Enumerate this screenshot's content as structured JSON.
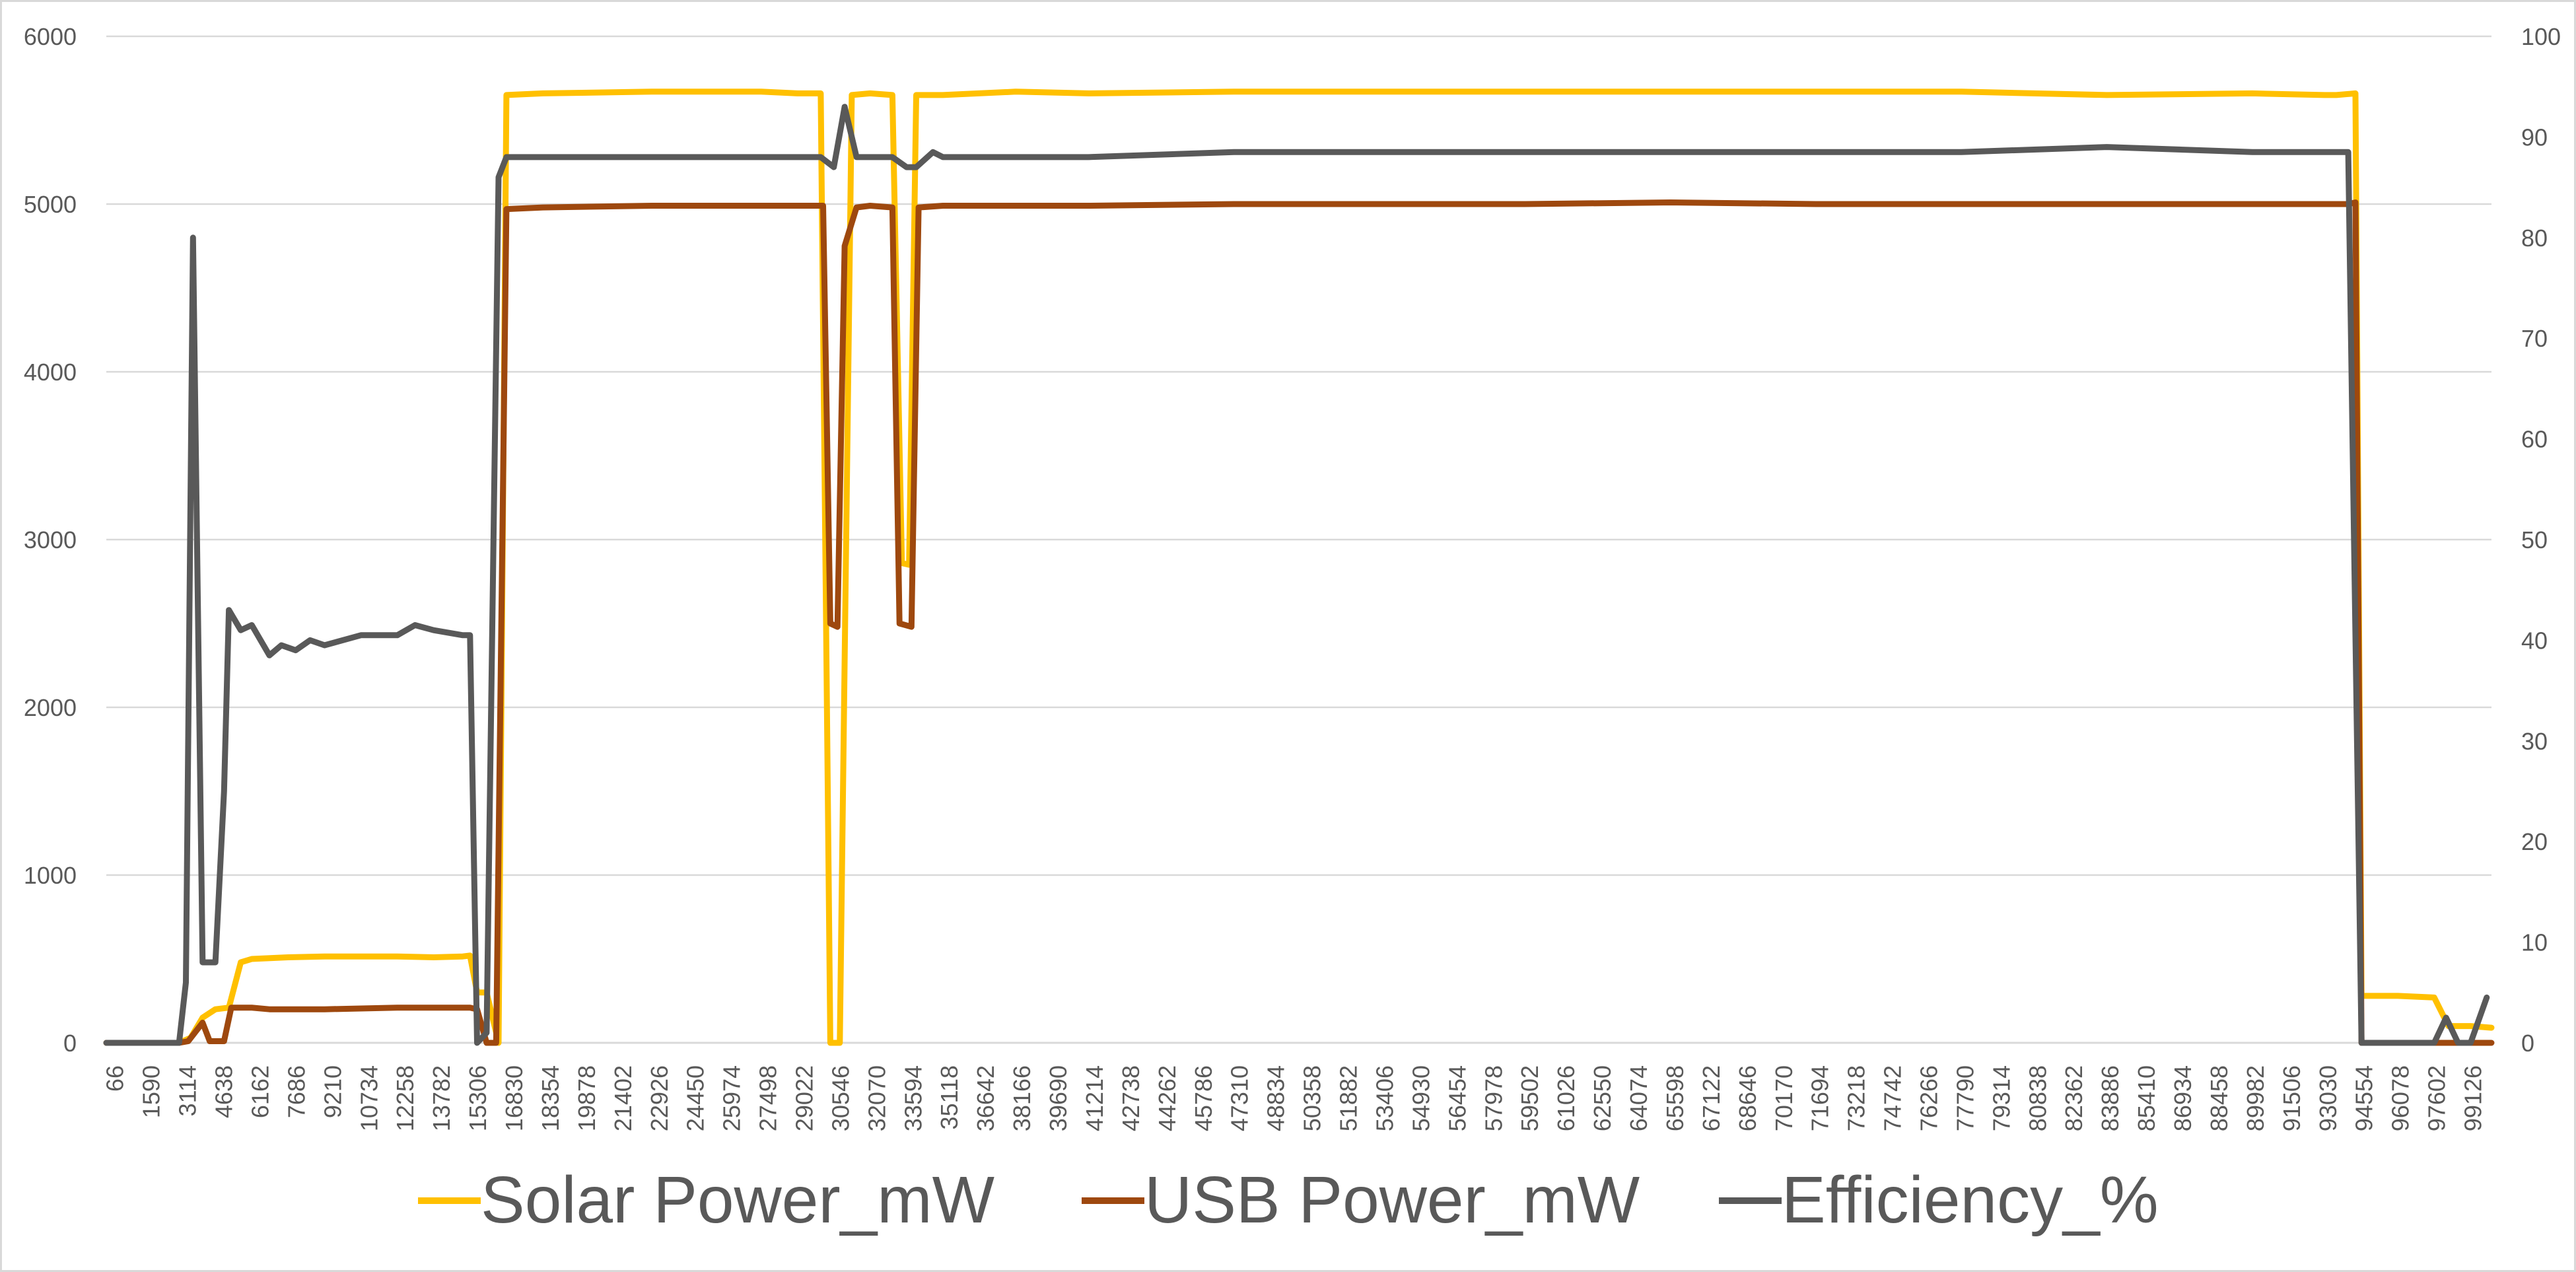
{
  "chart_data": {
    "type": "line",
    "title": "",
    "xlabel": "",
    "ylabel": "",
    "x_tick_labels": [
      "66",
      "1590",
      "3114",
      "4638",
      "6162",
      "7686",
      "9210",
      "10734",
      "12258",
      "13782",
      "15306",
      "16830",
      "18354",
      "19878",
      "21402",
      "22926",
      "24450",
      "25974",
      "27498",
      "29022",
      "30546",
      "32070",
      "33594",
      "35118",
      "36642",
      "38166",
      "39690",
      "41214",
      "42738",
      "44262",
      "45786",
      "47310",
      "48834",
      "50358",
      "51882",
      "53406",
      "54930",
      "56454",
      "57978",
      "59502",
      "61026",
      "62550",
      "64074",
      "65598",
      "67122",
      "68646",
      "70170",
      "71694",
      "73218",
      "74742",
      "76266",
      "77790",
      "79314",
      "80838",
      "82362",
      "83886",
      "85410",
      "86934",
      "88458",
      "89982",
      "91506",
      "93030",
      "94554",
      "96078",
      "97602",
      "99126"
    ],
    "x_range": [
      66,
      100000
    ],
    "y_left": {
      "range": [
        0,
        6000
      ],
      "ticks": [
        "0",
        "1000",
        "2000",
        "3000",
        "4000",
        "5000",
        "6000"
      ]
    },
    "y_right": {
      "range": [
        0,
        100
      ],
      "ticks": [
        "0",
        "10",
        "20",
        "30",
        "40",
        "50",
        "60",
        "70",
        "80",
        "90",
        "100"
      ]
    },
    "grid": "horizontal",
    "legend_position": "bottom",
    "series": [
      {
        "name": "Solar Power_mW",
        "axis": "left",
        "color": "#FFC000",
        "points": [
          [
            66,
            0
          ],
          [
            3114,
            0
          ],
          [
            3600,
            30
          ],
          [
            4100,
            150
          ],
          [
            4638,
            200
          ],
          [
            5200,
            210
          ],
          [
            5700,
            480
          ],
          [
            6162,
            500
          ],
          [
            7686,
            510
          ],
          [
            9210,
            515
          ],
          [
            12258,
            515
          ],
          [
            13782,
            510
          ],
          [
            15000,
            515
          ],
          [
            15306,
            520
          ],
          [
            15600,
            300
          ],
          [
            16000,
            300
          ],
          [
            16500,
            0
          ],
          [
            16830,
            5650
          ],
          [
            18354,
            5660
          ],
          [
            22926,
            5670
          ],
          [
            27498,
            5670
          ],
          [
            29022,
            5660
          ],
          [
            29600,
            5660
          ],
          [
            30000,
            5660
          ],
          [
            30400,
            0
          ],
          [
            30800,
            0
          ],
          [
            31300,
            5650
          ],
          [
            32070,
            5660
          ],
          [
            33000,
            5650
          ],
          [
            33400,
            2860
          ],
          [
            33700,
            2850
          ],
          [
            34000,
            5650
          ],
          [
            35118,
            5650
          ],
          [
            38166,
            5670
          ],
          [
            41214,
            5660
          ],
          [
            47310,
            5670
          ],
          [
            53406,
            5670
          ],
          [
            59502,
            5670
          ],
          [
            65598,
            5670
          ],
          [
            71694,
            5670
          ],
          [
            77790,
            5670
          ],
          [
            83886,
            5650
          ],
          [
            89982,
            5660
          ],
          [
            93000,
            5650
          ],
          [
            93500,
            5650
          ],
          [
            94300,
            5660
          ],
          [
            94554,
            280
          ],
          [
            96078,
            280
          ],
          [
            97602,
            270
          ],
          [
            98200,
            100
          ],
          [
            99126,
            100
          ],
          [
            100000,
            90
          ]
        ]
      },
      {
        "name": "USB Power_mW",
        "axis": "left",
        "color": "#9E480E",
        "points": [
          [
            66,
            0
          ],
          [
            3114,
            0
          ],
          [
            3500,
            10
          ],
          [
            4100,
            120
          ],
          [
            4400,
            10
          ],
          [
            5000,
            10
          ],
          [
            5300,
            210
          ],
          [
            6162,
            210
          ],
          [
            6900,
            200
          ],
          [
            7686,
            200
          ],
          [
            9210,
            200
          ],
          [
            12258,
            210
          ],
          [
            15306,
            210
          ],
          [
            15600,
            200
          ],
          [
            16000,
            0
          ],
          [
            16400,
            0
          ],
          [
            16830,
            4970
          ],
          [
            18354,
            4980
          ],
          [
            22926,
            4990
          ],
          [
            29022,
            4990
          ],
          [
            30100,
            4990
          ],
          [
            30400,
            2500
          ],
          [
            30700,
            2480
          ],
          [
            31000,
            4750
          ],
          [
            31500,
            4980
          ],
          [
            32070,
            4990
          ],
          [
            33000,
            4980
          ],
          [
            33300,
            2500
          ],
          [
            33800,
            2480
          ],
          [
            34100,
            4980
          ],
          [
            35118,
            4990
          ],
          [
            41214,
            4990
          ],
          [
            47310,
            5000
          ],
          [
            53406,
            5000
          ],
          [
            59502,
            5000
          ],
          [
            65598,
            5010
          ],
          [
            71694,
            5000
          ],
          [
            77790,
            5000
          ],
          [
            83886,
            5000
          ],
          [
            89982,
            5000
          ],
          [
            94000,
            5000
          ],
          [
            94300,
            5010
          ],
          [
            94554,
            0
          ],
          [
            100000,
            0
          ]
        ]
      },
      {
        "name": "Efficiency_%",
        "axis": "right",
        "color": "#595959",
        "points": [
          [
            66,
            0
          ],
          [
            3114,
            0
          ],
          [
            3400,
            6
          ],
          [
            3700,
            80
          ],
          [
            4100,
            8
          ],
          [
            4638,
            8
          ],
          [
            5000,
            25
          ],
          [
            5200,
            43
          ],
          [
            5700,
            41
          ],
          [
            6162,
            41.5
          ],
          [
            6900,
            38.5
          ],
          [
            7400,
            39.5
          ],
          [
            8000,
            39
          ],
          [
            8600,
            40
          ],
          [
            9210,
            39.5
          ],
          [
            10734,
            40.5
          ],
          [
            12258,
            40.5
          ],
          [
            13000,
            41.5
          ],
          [
            13782,
            41
          ],
          [
            15000,
            40.5
          ],
          [
            15306,
            40.5
          ],
          [
            15600,
            0
          ],
          [
            16000,
            1
          ],
          [
            16500,
            86
          ],
          [
            16830,
            88
          ],
          [
            18354,
            88
          ],
          [
            22926,
            88
          ],
          [
            29022,
            88
          ],
          [
            30000,
            88
          ],
          [
            30546,
            87
          ],
          [
            31000,
            93
          ],
          [
            31500,
            88
          ],
          [
            33000,
            88
          ],
          [
            33594,
            87
          ],
          [
            34000,
            87
          ],
          [
            34700,
            88.5
          ],
          [
            35118,
            88
          ],
          [
            38166,
            88
          ],
          [
            41214,
            88
          ],
          [
            47310,
            88.5
          ],
          [
            53406,
            88.5
          ],
          [
            59502,
            88.5
          ],
          [
            65598,
            88.5
          ],
          [
            71694,
            88.5
          ],
          [
            77790,
            88.5
          ],
          [
            83886,
            89
          ],
          [
            89982,
            88.5
          ],
          [
            93030,
            88.5
          ],
          [
            94000,
            88.5
          ],
          [
            94554,
            0
          ],
          [
            96078,
            0
          ],
          [
            97602,
            0
          ],
          [
            98100,
            2.5
          ],
          [
            98600,
            0
          ],
          [
            99126,
            0
          ],
          [
            99800,
            4.5
          ]
        ]
      }
    ]
  }
}
